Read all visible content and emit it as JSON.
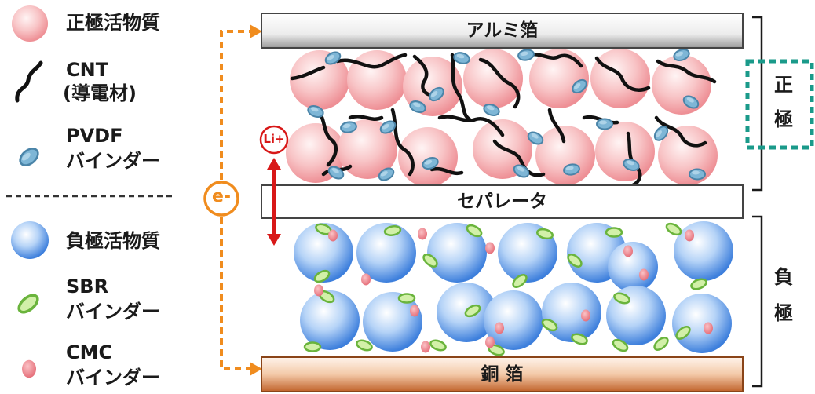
{
  "legend": {
    "positive_active": "正極活物質",
    "cnt_line1": "CNT",
    "cnt_line2": "(導電材)",
    "pvdf_line1": "PVDF",
    "pvdf_line2": "バインダー",
    "negative_active": "負極活物質",
    "sbr_line1": "SBR",
    "sbr_line2": "バインダー",
    "cmc_line1": "CMC",
    "cmc_line2": "バインダー"
  },
  "layers": {
    "aluminum_foil": "アルミ箔",
    "separator": "セパレータ",
    "copper_foil": "銅 箔"
  },
  "labels": {
    "electron": "e-",
    "lithium_ion": "Li+",
    "positive_electrode": "正\n極",
    "negative_electrode": "負\n極"
  },
  "colors": {
    "positive_particle": "#f3a3a8",
    "negative_particle": "#4f8ee6",
    "pvdf_binder": "#6fa8c9",
    "sbr_binder": "#8ccf4a",
    "cmc_binder": "#ee8a92",
    "electron_path": "#f08c1e",
    "li_arrow": "#d81818",
    "copper": "#c0622a",
    "aluminum": "#a0a0a0",
    "positive_highlight": "#1a9a8a"
  }
}
